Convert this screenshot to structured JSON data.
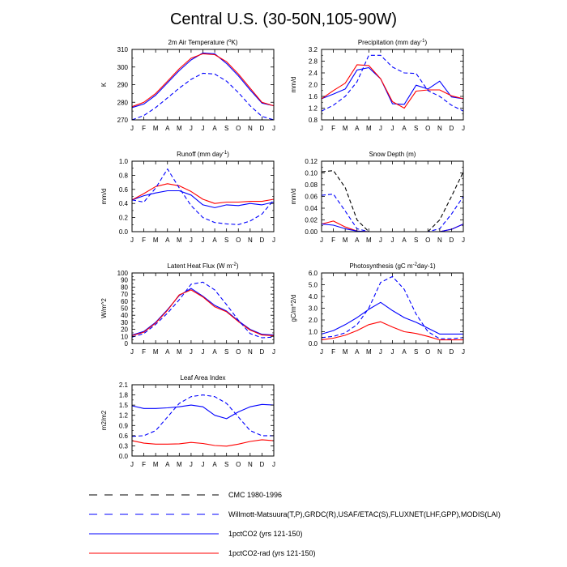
{
  "title": "Central U.S. (30-50N,105-90W)",
  "months": [
    "J",
    "F",
    "M",
    "A",
    "M",
    "J",
    "J",
    "A",
    "S",
    "O",
    "N",
    "D",
    "J"
  ],
  "legend": [
    {
      "label": "CMC 1980-1996",
      "color": "#000000",
      "style": "dashed",
      "series_id": "cmc"
    },
    {
      "label": "Willmott-Matsuura(T,P),GRDC(R),USAF/ETAC(S),FLUXNET(LHF,GPP),MODIS(LAI)",
      "color": "#0000ff",
      "style": "dashed",
      "series_id": "obs"
    },
    {
      "label": "1pctCO2 (yrs 121-150)",
      "color": "#0000ff",
      "style": "solid",
      "series_id": "co2"
    },
    {
      "label": "1pctCO2-rad (yrs 121-150)",
      "color": "#ff0000",
      "style": "solid",
      "series_id": "rad"
    }
  ],
  "chart_data": [
    {
      "type": "line",
      "title": "2m Air Temperature (°K)",
      "title_base": "2m Air Temperature (",
      "title_sup": "o",
      "title_rest": "K)",
      "ylabel": "K",
      "ylim": [
        270,
        310
      ],
      "yticks": [
        "270",
        "280",
        "290",
        "300",
        "310"
      ],
      "series": [
        {
          "id": "co2",
          "color": "#0000ff",
          "dash": false,
          "values": [
            277,
            279,
            284,
            291,
            298,
            304,
            308,
            307.5,
            302,
            295,
            287,
            279.5,
            278
          ]
        },
        {
          "id": "rad",
          "color": "#ff0000",
          "dash": false,
          "values": [
            277.5,
            280,
            285,
            292,
            299,
            305,
            307.5,
            307,
            303,
            296,
            288,
            280,
            278
          ]
        },
        {
          "id": "obs",
          "color": "#0000ff",
          "dash": true,
          "values": [
            270,
            272.5,
            277,
            282.5,
            288,
            293,
            296.5,
            296,
            292,
            285.5,
            278,
            272,
            270
          ]
        }
      ]
    },
    {
      "type": "line",
      "title": "Precipitation (mm day-1)",
      "title_base": "Precipitation (mm day",
      "title_sup": "-1",
      "title_rest": ")",
      "ylabel": "mm/d",
      "ylim": [
        0.8,
        3.2
      ],
      "yticks": [
        "0.8",
        "1.2",
        "1.6",
        "2.0",
        "2.4",
        "2.8",
        "3.2"
      ],
      "series": [
        {
          "id": "co2",
          "color": "#0000ff",
          "dash": false,
          "values": [
            1.52,
            1.68,
            1.85,
            2.5,
            2.58,
            2.2,
            1.35,
            1.33,
            1.98,
            1.85,
            2.12,
            1.58,
            1.52
          ]
        },
        {
          "id": "rad",
          "color": "#ff0000",
          "dash": false,
          "values": [
            1.52,
            1.8,
            2.05,
            2.68,
            2.65,
            2.2,
            1.42,
            1.2,
            1.78,
            1.82,
            1.82,
            1.62,
            1.52
          ]
        },
        {
          "id": "obs",
          "color": "#0000ff",
          "dash": true,
          "values": [
            1.1,
            1.3,
            1.6,
            2.1,
            3.0,
            3.0,
            2.6,
            2.4,
            2.38,
            1.8,
            1.6,
            1.3,
            1.1
          ]
        }
      ]
    },
    {
      "type": "line",
      "title": "Runoff (mm day-1)",
      "title_base": "Runoff (mm day",
      "title_sup": "-1",
      "title_rest": ")",
      "ylabel": "mm/d",
      "ylim": [
        0.0,
        1.0
      ],
      "yticks": [
        "0.0",
        "0.2",
        "0.4",
        "0.6",
        "0.8",
        "1.0"
      ],
      "series": [
        {
          "id": "co2",
          "color": "#0000ff",
          "dash": false,
          "values": [
            0.45,
            0.51,
            0.55,
            0.58,
            0.58,
            0.52,
            0.38,
            0.34,
            0.38,
            0.37,
            0.4,
            0.38,
            0.42
          ]
        },
        {
          "id": "rad",
          "color": "#ff0000",
          "dash": false,
          "values": [
            0.45,
            0.54,
            0.64,
            0.68,
            0.65,
            0.57,
            0.46,
            0.4,
            0.42,
            0.42,
            0.43,
            0.43,
            0.46
          ]
        },
        {
          "id": "obs",
          "color": "#0000ff",
          "dash": true,
          "values": [
            0.45,
            0.42,
            0.62,
            0.89,
            0.62,
            0.37,
            0.2,
            0.13,
            0.11,
            0.1,
            0.15,
            0.25,
            0.45
          ]
        }
      ]
    },
    {
      "type": "line",
      "title": "Snow Depth (m)",
      "title_base": "Snow Depth (m)",
      "title_sup": "",
      "title_rest": "",
      "ylabel": "mm/d",
      "ylim": [
        0.0,
        0.12
      ],
      "yticks": [
        "0.00",
        "0.02",
        "0.04",
        "0.06",
        "0.08",
        "0.10",
        "0.12"
      ],
      "series": [
        {
          "id": "cmc",
          "color": "#000000",
          "dash": true,
          "values": [
            0.102,
            0.104,
            0.075,
            0.02,
            0,
            0,
            0,
            0,
            0,
            0,
            0.02,
            0.06,
            0.102
          ]
        },
        {
          "id": "obs",
          "color": "#0000ff",
          "dash": true,
          "values": [
            0.062,
            0.064,
            0.035,
            0.005,
            0,
            0,
            0,
            0,
            0,
            0,
            0.005,
            0.03,
            0.06
          ]
        },
        {
          "id": "rad",
          "color": "#ff0000",
          "dash": false,
          "values": [
            0.013,
            0.018,
            0.008,
            0.001,
            0,
            0,
            0,
            0,
            0,
            0,
            0,
            0.004,
            0.013
          ]
        },
        {
          "id": "co2",
          "color": "#0000ff",
          "dash": false,
          "values": [
            0.013,
            0.011,
            0.005,
            0.001,
            0,
            0,
            0,
            0,
            0,
            0,
            0,
            0.004,
            0.013
          ]
        }
      ]
    },
    {
      "type": "line",
      "title": "Latent Heat Flux (W m-2)",
      "title_base": "Latent Heat Flux (W m",
      "title_sup": "-2",
      "title_rest": ")",
      "ylabel": "W/m^2",
      "ylim": [
        0,
        100
      ],
      "yticks": [
        "0",
        "10",
        "20",
        "30",
        "40",
        "50",
        "60",
        "70",
        "80",
        "90",
        "100"
      ],
      "series": [
        {
          "id": "co2",
          "color": "#0000ff",
          "dash": false,
          "values": [
            12,
            17,
            30,
            48,
            68,
            78,
            67,
            54,
            46,
            32,
            20,
            13,
            12
          ]
        },
        {
          "id": "rad",
          "color": "#ff0000",
          "dash": false,
          "values": [
            11,
            16,
            29,
            47,
            69,
            76,
            66,
            52,
            45,
            31,
            19,
            12,
            11
          ]
        },
        {
          "id": "obs",
          "color": "#0000ff",
          "dash": true,
          "values": [
            9,
            14,
            27,
            43,
            62,
            84,
            87,
            76,
            55,
            33,
            14,
            8,
            9
          ]
        }
      ]
    },
    {
      "type": "line",
      "title": "Photosynthesis (gC m-2day-1)",
      "title_base": "Photosynthesis (gC m",
      "title_sup": "-2",
      "title_rest": "day-1)",
      "ylabel": "gC/m^2/d",
      "ylim": [
        0.0,
        6.0
      ],
      "yticks": [
        "0.0",
        "1.0",
        "2.0",
        "3.0",
        "4.0",
        "5.0",
        "6.0"
      ],
      "series": [
        {
          "id": "co2",
          "color": "#0000ff",
          "dash": false,
          "values": [
            0.8,
            1.1,
            1.6,
            2.2,
            2.9,
            3.5,
            2.8,
            2.2,
            1.8,
            1.3,
            0.8,
            0.8,
            0.8
          ]
        },
        {
          "id": "rad",
          "color": "#ff0000",
          "dash": false,
          "values": [
            0.3,
            0.45,
            0.7,
            1.1,
            1.6,
            1.85,
            1.4,
            1.0,
            0.85,
            0.6,
            0.3,
            0.3,
            0.3
          ]
        },
        {
          "id": "obs",
          "color": "#0000ff",
          "dash": true,
          "values": [
            0.5,
            0.6,
            0.9,
            1.6,
            3.0,
            5.2,
            5.7,
            4.6,
            2.5,
            1.0,
            0.4,
            0.4,
            0.5
          ]
        }
      ]
    },
    {
      "type": "line",
      "title": "Leaf Area Index",
      "title_base": "Leaf Area Index",
      "title_sup": "",
      "title_rest": "",
      "ylabel": "m2/m2",
      "ylim": [
        0.0,
        2.1
      ],
      "yticks": [
        "0.0",
        "0.3",
        "0.6",
        "0.9",
        "1.2",
        "1.5",
        "1.8",
        "2.1"
      ],
      "series": [
        {
          "id": "co2",
          "color": "#0000ff",
          "dash": false,
          "values": [
            1.48,
            1.4,
            1.4,
            1.42,
            1.45,
            1.5,
            1.45,
            1.2,
            1.1,
            1.3,
            1.45,
            1.52,
            1.5
          ]
        },
        {
          "id": "rad",
          "color": "#ff0000",
          "dash": false,
          "values": [
            0.45,
            0.38,
            0.35,
            0.35,
            0.36,
            0.4,
            0.37,
            0.31,
            0.29,
            0.35,
            0.43,
            0.48,
            0.45
          ]
        },
        {
          "id": "obs",
          "color": "#0000ff",
          "dash": true,
          "values": [
            0.58,
            0.6,
            0.75,
            1.15,
            1.55,
            1.75,
            1.8,
            1.75,
            1.55,
            1.15,
            0.75,
            0.6,
            0.6
          ]
        }
      ]
    }
  ]
}
